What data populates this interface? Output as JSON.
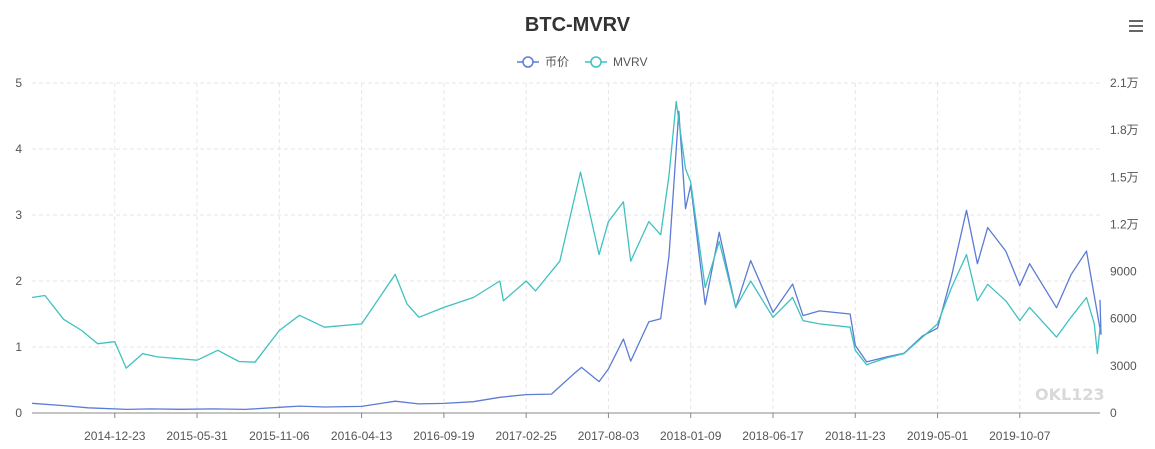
{
  "title": "BTC-MVRV",
  "menu_icon": "hamburger-menu-icon",
  "watermark": "OKL123",
  "chart_data": {
    "type": "line",
    "title": "BTC-MVRV",
    "grid": true,
    "legend": {
      "placement": "top-center",
      "entries": [
        "币价",
        "MVRV"
      ]
    },
    "x_tick_labels": [
      "2014-12-23",
      "2015-05-31",
      "2015-11-06",
      "2016-04-13",
      "2016-09-19",
      "2017-02-25",
      "2017-08-03",
      "2018-01-09",
      "2018-06-17",
      "2018-11-23",
      "2019-05-01",
      "2019-10-07"
    ],
    "x_range": [
      "2014-07-16",
      "2020-03-10"
    ],
    "left_axis": {
      "series": "MVRV",
      "ticks": [
        "0",
        "1",
        "2",
        "3",
        "4",
        "5"
      ],
      "ylim": [
        0,
        5
      ]
    },
    "right_axis": {
      "series": "币价",
      "ticks": [
        "0",
        "3000",
        "6000",
        "9000",
        "1.2万",
        "1.5万",
        "1.8万",
        "2.1万"
      ],
      "ylim": [
        0,
        21000
      ]
    },
    "series": [
      {
        "name": "币价",
        "axis": "right",
        "color": "#5b7bd5",
        "points": [
          [
            "2014-07-16",
            620
          ],
          [
            "2014-09-15",
            470
          ],
          [
            "2014-11-01",
            330
          ],
          [
            "2015-01-15",
            230
          ],
          [
            "2015-03-01",
            260
          ],
          [
            "2015-05-01",
            235
          ],
          [
            "2015-07-01",
            260
          ],
          [
            "2015-09-01",
            230
          ],
          [
            "2015-11-06",
            360
          ],
          [
            "2015-12-15",
            440
          ],
          [
            "2016-02-01",
            380
          ],
          [
            "2016-04-13",
            420
          ],
          [
            "2016-06-17",
            750
          ],
          [
            "2016-08-01",
            580
          ],
          [
            "2016-09-19",
            610
          ],
          [
            "2016-11-15",
            720
          ],
          [
            "2017-01-05",
            1000
          ],
          [
            "2017-02-25",
            1170
          ],
          [
            "2017-04-15",
            1200
          ],
          [
            "2017-05-25",
            2400
          ],
          [
            "2017-06-12",
            2900
          ],
          [
            "2017-07-16",
            2000
          ],
          [
            "2017-08-03",
            2800
          ],
          [
            "2017-09-01",
            4700
          ],
          [
            "2017-09-15",
            3300
          ],
          [
            "2017-10-20",
            5800
          ],
          [
            "2017-11-12",
            6000
          ],
          [
            "2017-11-28",
            10000
          ],
          [
            "2017-12-17",
            19200
          ],
          [
            "2017-12-30",
            13000
          ],
          [
            "2018-01-09",
            14500
          ],
          [
            "2018-02-06",
            6900
          ],
          [
            "2018-03-05",
            11500
          ],
          [
            "2018-04-06",
            6700
          ],
          [
            "2018-05-05",
            9700
          ],
          [
            "2018-06-17",
            6400
          ],
          [
            "2018-07-25",
            8200
          ],
          [
            "2018-08-14",
            6200
          ],
          [
            "2018-09-15",
            6500
          ],
          [
            "2018-11-13",
            6300
          ],
          [
            "2018-11-23",
            4300
          ],
          [
            "2018-12-15",
            3250
          ],
          [
            "2019-01-20",
            3550
          ],
          [
            "2019-02-25",
            3800
          ],
          [
            "2019-04-02",
            4900
          ],
          [
            "2019-05-01",
            5400
          ],
          [
            "2019-05-28",
            8700
          ],
          [
            "2019-06-26",
            12900
          ],
          [
            "2019-07-17",
            9500
          ],
          [
            "2019-08-06",
            11800
          ],
          [
            "2019-09-10",
            10300
          ],
          [
            "2019-10-07",
            8100
          ],
          [
            "2019-10-26",
            9500
          ],
          [
            "2019-12-17",
            6700
          ],
          [
            "2020-01-14",
            8800
          ],
          [
            "2020-02-13",
            10300
          ],
          [
            "2020-03-12",
            5000
          ],
          [
            "2020-03-10",
            7200
          ]
        ]
      },
      {
        "name": "MVRV",
        "axis": "left",
        "color": "#3fc1c0",
        "points": [
          [
            "2014-07-16",
            1.75
          ],
          [
            "2014-08-10",
            1.78
          ],
          [
            "2014-09-15",
            1.42
          ],
          [
            "2014-10-20",
            1.25
          ],
          [
            "2014-11-20",
            1.05
          ],
          [
            "2014-12-23",
            1.08
          ],
          [
            "2015-01-14",
            0.68
          ],
          [
            "2015-02-15",
            0.9
          ],
          [
            "2015-03-15",
            0.85
          ],
          [
            "2015-05-31",
            0.8
          ],
          [
            "2015-07-10",
            0.95
          ],
          [
            "2015-08-20",
            0.78
          ],
          [
            "2015-09-20",
            0.77
          ],
          [
            "2015-11-06",
            1.25
          ],
          [
            "2015-12-15",
            1.48
          ],
          [
            "2016-02-01",
            1.3
          ],
          [
            "2016-04-13",
            1.35
          ],
          [
            "2016-06-17",
            2.1
          ],
          [
            "2016-07-10",
            1.65
          ],
          [
            "2016-08-02",
            1.45
          ],
          [
            "2016-09-19",
            1.6
          ],
          [
            "2016-11-15",
            1.75
          ],
          [
            "2017-01-05",
            2.0
          ],
          [
            "2017-01-12",
            1.7
          ],
          [
            "2017-02-25",
            2.0
          ],
          [
            "2017-03-15",
            1.85
          ],
          [
            "2017-05-01",
            2.3
          ],
          [
            "2017-06-10",
            3.65
          ],
          [
            "2017-07-16",
            2.4
          ],
          [
            "2017-08-03",
            2.9
          ],
          [
            "2017-09-01",
            3.2
          ],
          [
            "2017-09-15",
            2.3
          ],
          [
            "2017-10-20",
            2.9
          ],
          [
            "2017-11-12",
            2.7
          ],
          [
            "2017-11-28",
            3.6
          ],
          [
            "2017-12-12",
            4.72
          ],
          [
            "2017-12-30",
            3.7
          ],
          [
            "2018-01-09",
            3.5
          ],
          [
            "2018-02-06",
            1.9
          ],
          [
            "2018-03-05",
            2.6
          ],
          [
            "2018-04-06",
            1.6
          ],
          [
            "2018-05-05",
            2.0
          ],
          [
            "2018-06-17",
            1.45
          ],
          [
            "2018-07-25",
            1.75
          ],
          [
            "2018-08-14",
            1.4
          ],
          [
            "2018-09-15",
            1.35
          ],
          [
            "2018-11-13",
            1.3
          ],
          [
            "2018-11-23",
            0.95
          ],
          [
            "2018-12-15",
            0.73
          ],
          [
            "2019-01-20",
            0.83
          ],
          [
            "2019-02-25",
            0.9
          ],
          [
            "2019-04-02",
            1.15
          ],
          [
            "2019-05-01",
            1.35
          ],
          [
            "2019-05-28",
            1.9
          ],
          [
            "2019-06-26",
            2.4
          ],
          [
            "2019-07-17",
            1.7
          ],
          [
            "2019-08-06",
            1.95
          ],
          [
            "2019-09-10",
            1.7
          ],
          [
            "2019-10-07",
            1.4
          ],
          [
            "2019-10-26",
            1.6
          ],
          [
            "2019-12-17",
            1.15
          ],
          [
            "2020-01-14",
            1.45
          ],
          [
            "2020-02-13",
            1.75
          ],
          [
            "2020-02-28",
            1.35
          ],
          [
            "2020-03-05",
            0.9
          ],
          [
            "2020-03-10",
            1.3
          ]
        ]
      }
    ]
  }
}
